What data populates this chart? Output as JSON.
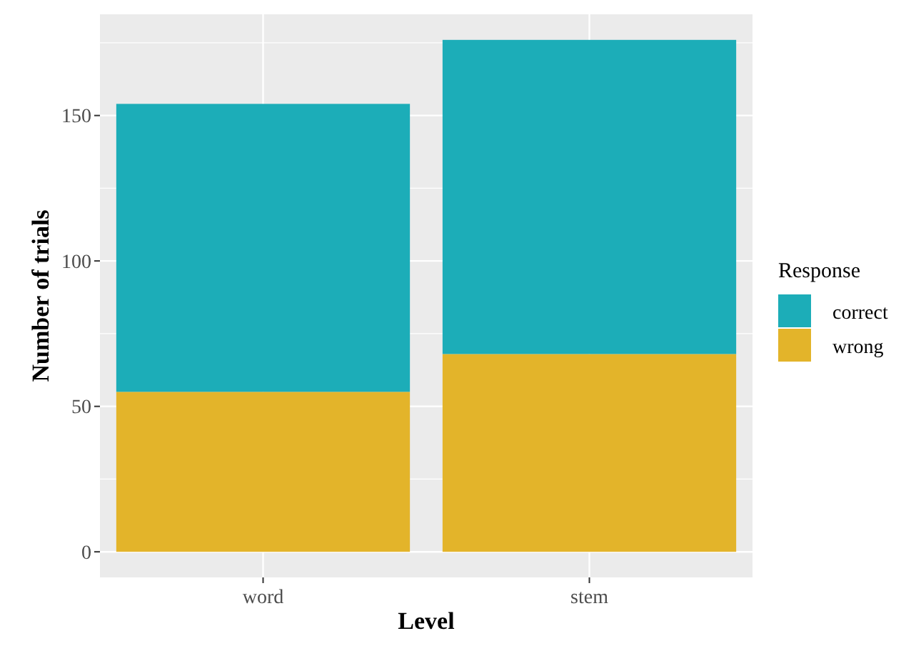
{
  "chart_data": {
    "type": "bar",
    "stacked": true,
    "xlabel": "Level",
    "ylabel": "Number of trials",
    "legend_title": "Response",
    "categories": [
      "word",
      "stem"
    ],
    "series": [
      {
        "name": "wrong",
        "color": "#e3b42a",
        "values": [
          55,
          68
        ]
      },
      {
        "name": "correct",
        "color": "#1cadb8",
        "values": [
          99,
          108
        ]
      }
    ],
    "ylim": [
      -8.8,
      184.8
    ],
    "yticks": [
      0,
      50,
      100,
      150
    ],
    "grid": true,
    "legend": "right"
  }
}
